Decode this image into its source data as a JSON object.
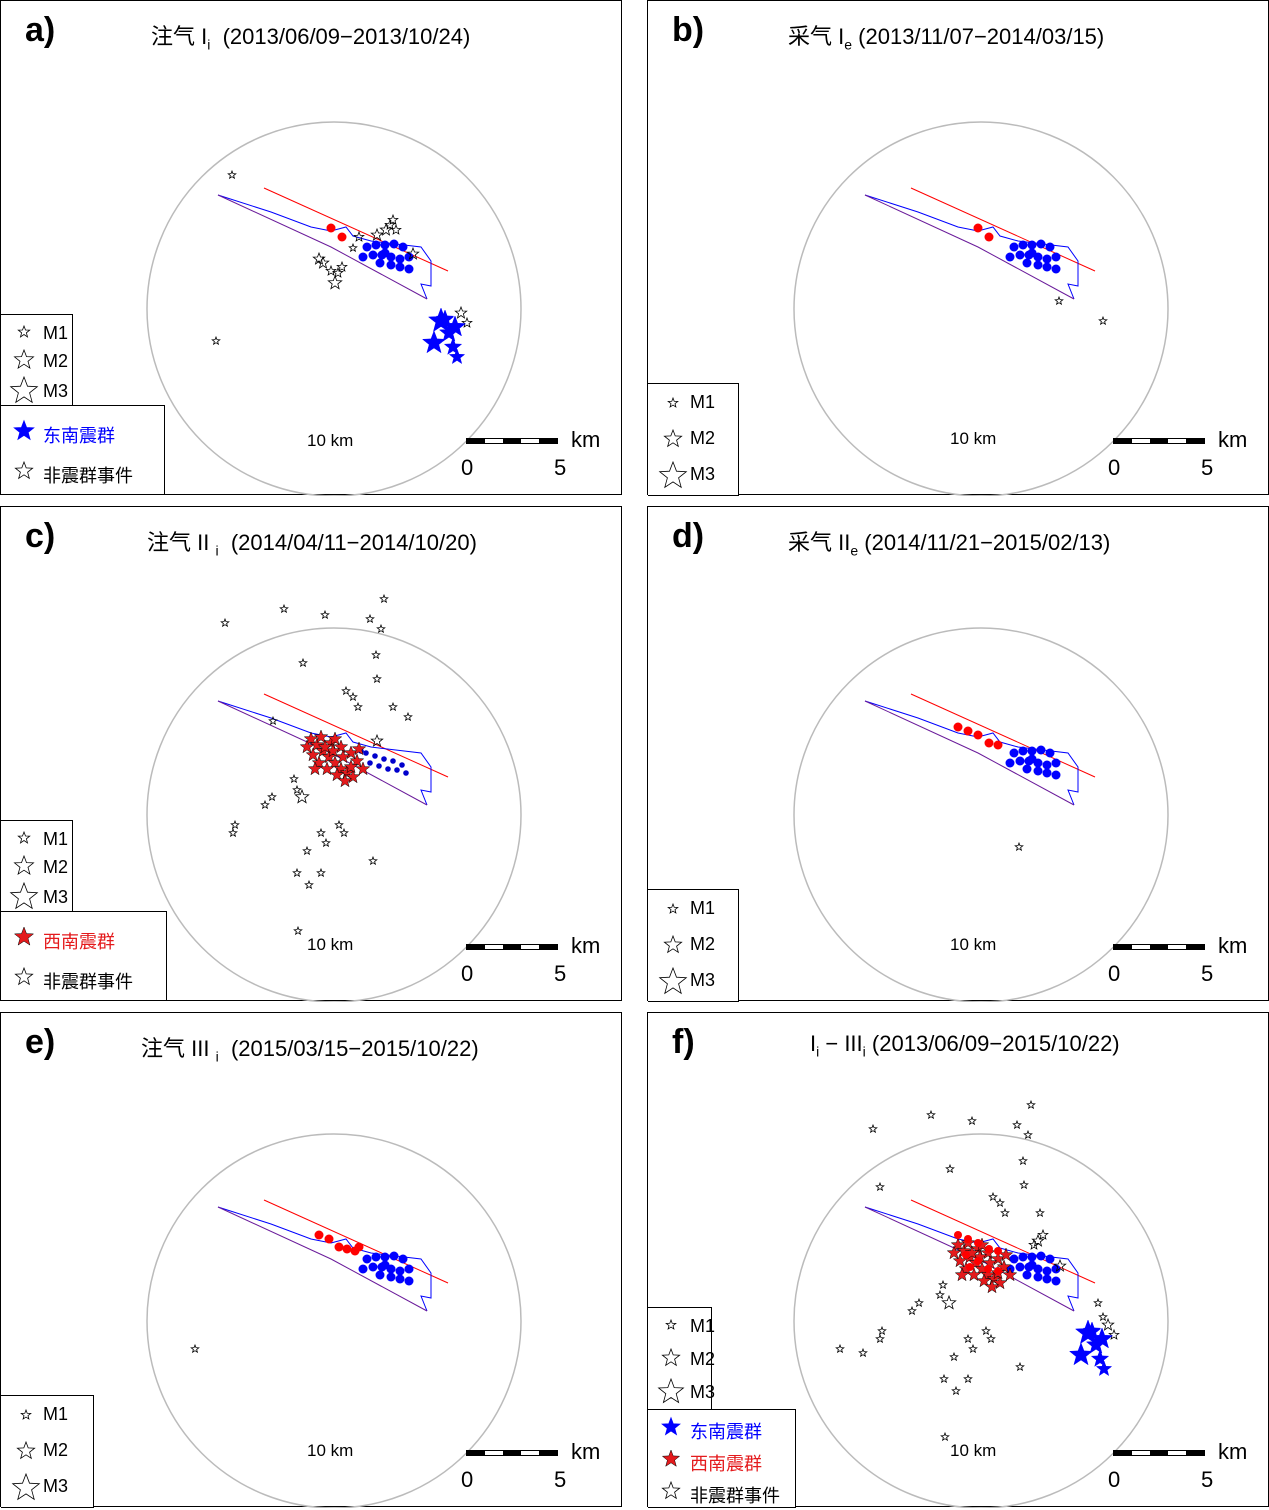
{
  "panels": [
    {
      "label": "a)",
      "title_prefix": "注气 I",
      "title_sub": "i",
      "title_range": "(2013/06/09−2013/10/24)"
    },
    {
      "label": "b)",
      "title_prefix": "采气 I",
      "title_sub": "e",
      "title_range": "(2013/11/07−2014/03/15)"
    },
    {
      "label": "c)",
      "title_prefix": "注气 II",
      "title_sub": "i",
      "title_range": "(2014/04/11−2014/10/20)"
    },
    {
      "label": "d)",
      "title_prefix": "采气 II",
      "title_sub": "e",
      "title_range": "(2014/11/21−2015/02/13)"
    },
    {
      "label": "e)",
      "title_prefix": "注气 III",
      "title_sub": "i",
      "title_range": "(2015/03/15−2015/10/22)"
    },
    {
      "label": "f)",
      "title_prefix": "I",
      "title_sub": "i",
      "title_mid": " − III",
      "title_sub2": "i",
      "title_range": "(2013/06/09−2015/10/22)"
    }
  ],
  "common": {
    "circle_label": "10 km",
    "scale_unit": "km",
    "scale_ticks": [
      "0",
      "5"
    ],
    "magnitude_legend": [
      "M1",
      "M2",
      "M3"
    ],
    "cluster_southeast": "东南震群",
    "cluster_southwest": "西南震群",
    "non_cluster": "非震群事件"
  },
  "colors": {
    "southeast": "#0000ff",
    "southwest": "#e41a1c",
    "fault": "#ff0000",
    "reservoir": "#0000ff",
    "circle": "#bbbbbb"
  },
  "chart_data": {
    "type": "scatter",
    "description_units": "km relative to circle centre",
    "panels": [
      {
        "id": "a",
        "southeast_cluster": true,
        "southwest_cluster": false,
        "non_cluster_count": "many"
      },
      {
        "id": "b",
        "southeast_cluster": false,
        "southwest_cluster": false,
        "non_cluster_count": 2
      },
      {
        "id": "c",
        "southeast_cluster": false,
        "southwest_cluster": true,
        "non_cluster_count": "many"
      },
      {
        "id": "d",
        "southeast_cluster": false,
        "southwest_cluster": false,
        "non_cluster_count": 1
      },
      {
        "id": "e",
        "southeast_cluster": false,
        "southwest_cluster": false,
        "non_cluster_count": 1
      },
      {
        "id": "f",
        "southeast_cluster": true,
        "southwest_cluster": true,
        "non_cluster_count": "many"
      }
    ]
  }
}
